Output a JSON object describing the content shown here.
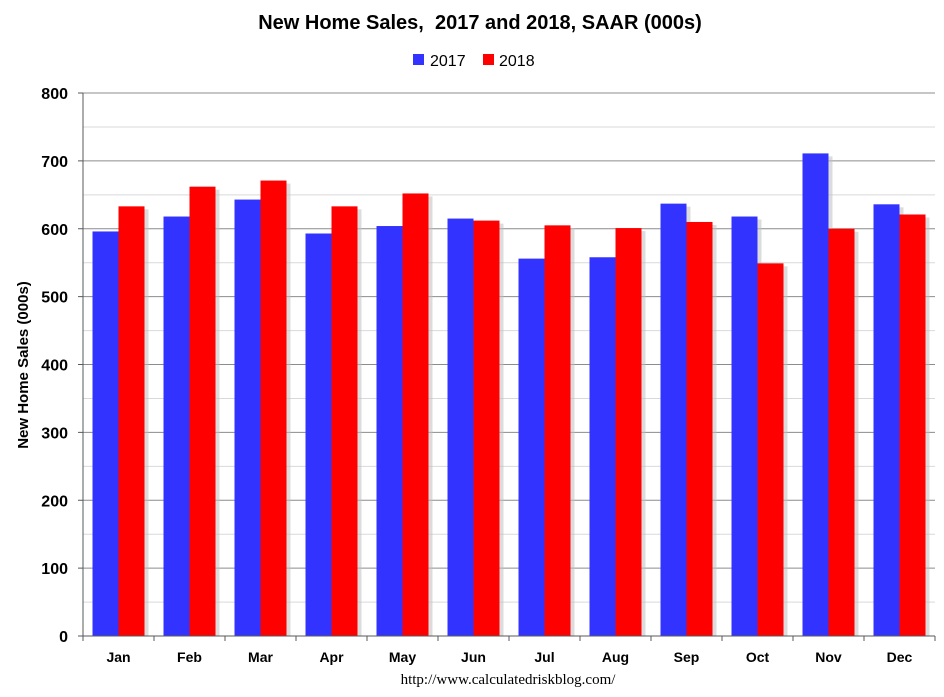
{
  "chart_data": {
    "type": "bar",
    "title": "New Home Sales,  2017 and 2018, SAAR (000s)",
    "ylabel": "New Home Sales (000s)",
    "xlabel": "",
    "categories": [
      "Jan",
      "Feb",
      "Mar",
      "Apr",
      "May",
      "Jun",
      "Jul",
      "Aug",
      "Sep",
      "Oct",
      "Nov",
      "Dec"
    ],
    "series": [
      {
        "name": "2017",
        "color": "#3333ff",
        "values": [
          596,
          618,
          643,
          593,
          604,
          615,
          556,
          558,
          637,
          618,
          711,
          636
        ]
      },
      {
        "name": "2018",
        "color": "#ff0000",
        "values": [
          633,
          662,
          671,
          633,
          652,
          612,
          605,
          601,
          610,
          549,
          600,
          621
        ]
      }
    ],
    "ylim": [
      0,
      800
    ],
    "yticks": [
      0,
      100,
      200,
      300,
      400,
      500,
      600,
      700,
      800
    ],
    "grid": true,
    "legend_position": "top-center",
    "source_note": "http://www.calculatedriskblog.com/"
  }
}
